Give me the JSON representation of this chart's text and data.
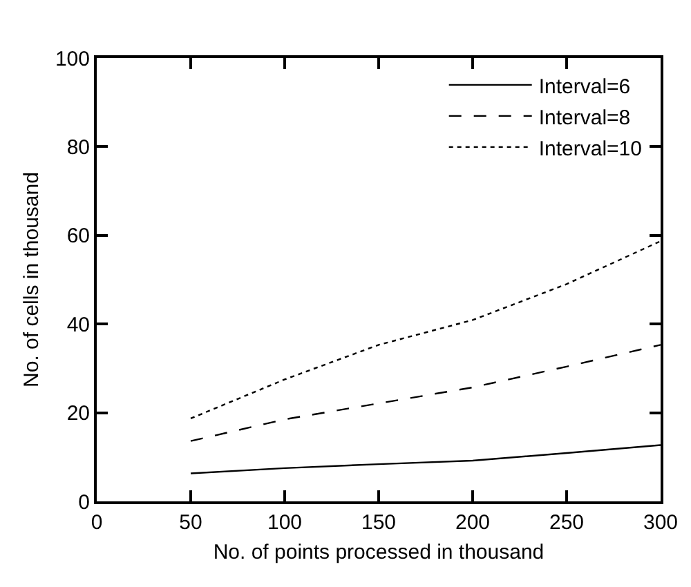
{
  "chart_data": {
    "type": "line",
    "xlabel": "No. of points processed in thousand",
    "ylabel": "No. of cells in thousand",
    "x": [
      50,
      100,
      150,
      200,
      250,
      300
    ],
    "series": [
      {
        "name": "Interval=6",
        "color": "#000000",
        "line_style": "solid",
        "values": [
          6.3,
          7.5,
          8.4,
          9.2,
          10.9,
          12.7
        ]
      },
      {
        "name": "Interval=8",
        "color": "#000000",
        "line_style": "dashed",
        "values": [
          13.6,
          18.5,
          22.1,
          25.7,
          30.4,
          35.3
        ]
      },
      {
        "name": "Interval=10",
        "color": "#000000",
        "line_style": "dotted",
        "values": [
          18.7,
          27.5,
          35.3,
          40.9,
          49,
          58.7
        ]
      }
    ],
    "xlim": [
      0,
      300
    ],
    "xticks": [
      0,
      50,
      100,
      150,
      200,
      250,
      300
    ],
    "ylim": [
      0,
      100
    ],
    "yticks": [
      0,
      20,
      40,
      60,
      80,
      100
    ],
    "grid": false,
    "legend": "top right",
    "marker": "none"
  }
}
